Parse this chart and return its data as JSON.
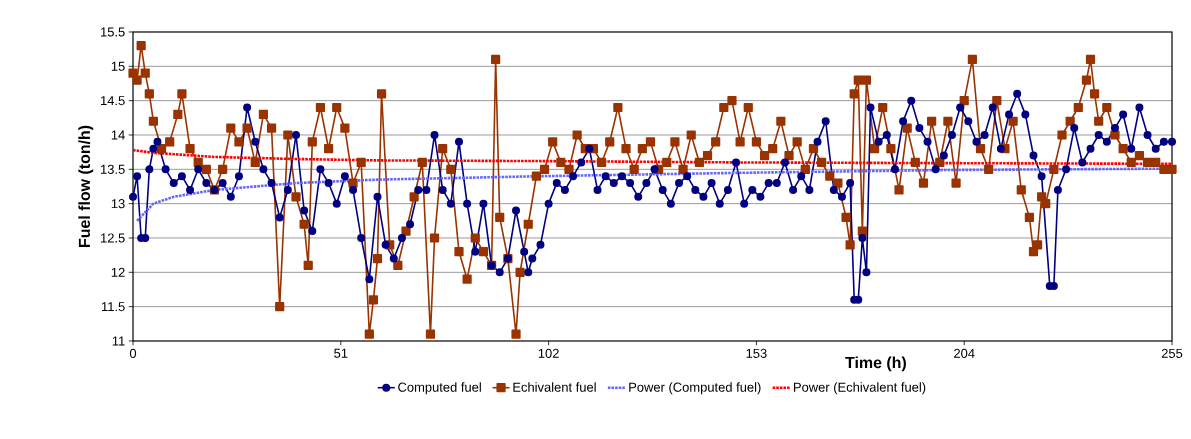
{
  "chart_data": {
    "type": "line",
    "xlabel": "Time (h)",
    "ylabel": "Fuel flow (ton/h)",
    "xlim": [
      0,
      255
    ],
    "xticks": [
      0,
      51,
      102,
      153,
      204,
      255
    ],
    "ylim": [
      11,
      15.5
    ],
    "yticks": [
      11,
      11.5,
      12,
      12.5,
      13,
      13.5,
      14,
      14.5,
      15,
      15.5
    ],
    "grid": "y",
    "legend": "bottom",
    "series": [
      {
        "name": "Computed fuel",
        "color": "#000080",
        "marker": "circle",
        "line_style": "solid",
        "x": [
          0,
          1,
          2,
          3,
          4,
          5,
          6,
          8,
          10,
          12,
          14,
          16,
          18,
          20,
          22,
          24,
          26,
          28,
          30,
          32,
          34,
          36,
          38,
          40,
          42,
          44,
          46,
          48,
          50,
          52,
          54,
          56,
          58,
          60,
          62,
          64,
          66,
          68,
          70,
          72,
          74,
          76,
          78,
          80,
          82,
          84,
          86,
          88,
          90,
          92,
          94,
          96,
          97,
          98,
          100,
          102,
          104,
          106,
          108,
          110,
          112,
          114,
          116,
          118,
          120,
          122,
          124,
          126,
          128,
          130,
          132,
          134,
          136,
          138,
          140,
          142,
          144,
          146,
          148,
          150,
          152,
          154,
          156,
          158,
          160,
          162,
          164,
          166,
          168,
          170,
          172,
          174,
          176,
          177,
          178,
          179,
          180,
          181,
          183,
          185,
          187,
          189,
          191,
          193,
          195,
          197,
          199,
          201,
          203,
          205,
          207,
          209,
          211,
          213,
          215,
          217,
          219,
          221,
          223,
          225,
          226,
          227,
          229,
          231,
          233,
          235,
          237,
          239,
          241,
          243,
          245,
          247,
          249,
          251,
          253,
          255
        ],
        "values": [
          13.1,
          13.4,
          12.5,
          12.5,
          13.5,
          13.8,
          13.9,
          13.5,
          13.3,
          13.4,
          13.2,
          13.5,
          13.3,
          13.2,
          13.3,
          13.1,
          13.4,
          14.4,
          13.9,
          13.5,
          13.3,
          12.8,
          13.2,
          14.0,
          12.9,
          12.6,
          13.5,
          13.3,
          13.0,
          13.4,
          13.2,
          12.5,
          11.9,
          13.1,
          12.4,
          12.2,
          12.5,
          12.7,
          13.2,
          13.2,
          14.0,
          13.2,
          13.0,
          13.9,
          13.0,
          12.3,
          13.0,
          12.1,
          12.0,
          12.2,
          12.9,
          12.3,
          12.0,
          12.2,
          12.4,
          13.0,
          13.3,
          13.2,
          13.4,
          13.6,
          13.8,
          13.2,
          13.4,
          13.3,
          13.4,
          13.3,
          13.1,
          13.3,
          13.5,
          13.2,
          13.0,
          13.3,
          13.4,
          13.2,
          13.1,
          13.3,
          13.0,
          13.2,
          13.6,
          13.0,
          13.2,
          13.1,
          13.3,
          13.3,
          13.6,
          13.2,
          13.4,
          13.2,
          13.9,
          14.2,
          13.2,
          13.1,
          13.3,
          11.6,
          11.6,
          12.5,
          12.0,
          14.4,
          13.9,
          14.0,
          13.5,
          14.2,
          14.5,
          14.1,
          13.9,
          13.5,
          13.7,
          14.0,
          14.4,
          14.2,
          13.9,
          14.0,
          14.4,
          13.8,
          14.3,
          14.6,
          14.3,
          13.7,
          13.4,
          11.8,
          11.8,
          13.2,
          13.5,
          14.1,
          13.6,
          13.8,
          14.0,
          13.9,
          14.1,
          14.3,
          13.8,
          14.4,
          14.0,
          13.8,
          13.9,
          13.9
        ]
      },
      {
        "name": "Echivalent fuel",
        "color": "#993300",
        "marker": "square",
        "line_style": "solid",
        "x": [
          0,
          1,
          2,
          3,
          4,
          5,
          7,
          9,
          11,
          12,
          14,
          16,
          18,
          20,
          22,
          24,
          26,
          28,
          30,
          32,
          34,
          36,
          38,
          40,
          42,
          43,
          44,
          46,
          48,
          50,
          52,
          54,
          56,
          58,
          59,
          60,
          61,
          63,
          65,
          67,
          69,
          71,
          73,
          74,
          76,
          78,
          80,
          82,
          84,
          86,
          88,
          89,
          90,
          92,
          94,
          95,
          97,
          99,
          101,
          103,
          105,
          107,
          109,
          111,
          113,
          115,
          117,
          119,
          121,
          123,
          125,
          127,
          129,
          131,
          133,
          135,
          137,
          139,
          141,
          143,
          145,
          147,
          149,
          151,
          153,
          155,
          157,
          159,
          161,
          163,
          165,
          167,
          169,
          171,
          173,
          175,
          176,
          177,
          178,
          179,
          180,
          182,
          184,
          186,
          188,
          190,
          192,
          194,
          196,
          198,
          200,
          202,
          204,
          206,
          208,
          210,
          212,
          214,
          216,
          218,
          220,
          221,
          222,
          223,
          224,
          226,
          228,
          230,
          232,
          234,
          235,
          236,
          237,
          239,
          241,
          243,
          245,
          247,
          249,
          251,
          253,
          255
        ],
        "values": [
          14.9,
          14.8,
          15.3,
          14.9,
          14.6,
          14.2,
          13.8,
          13.9,
          14.3,
          14.6,
          13.8,
          13.6,
          13.5,
          13.2,
          13.5,
          14.1,
          13.9,
          14.1,
          13.6,
          14.3,
          14.1,
          11.5,
          14.0,
          13.1,
          12.7,
          12.1,
          13.9,
          14.4,
          13.8,
          14.4,
          14.1,
          13.3,
          13.6,
          11.1,
          11.6,
          12.2,
          14.6,
          12.4,
          12.1,
          12.6,
          13.1,
          13.6,
          11.1,
          12.5,
          13.8,
          13.5,
          12.3,
          11.9,
          12.5,
          12.3,
          12.1,
          15.1,
          12.8,
          12.2,
          11.1,
          12.0,
          12.7,
          13.4,
          13.5,
          13.9,
          13.6,
          13.5,
          14.0,
          13.8,
          13.8,
          13.6,
          13.9,
          14.4,
          13.8,
          13.5,
          13.8,
          13.9,
          13.5,
          13.6,
          13.9,
          13.5,
          14.0,
          13.6,
          13.7,
          13.9,
          14.4,
          14.5,
          13.9,
          14.4,
          13.9,
          13.7,
          13.8,
          14.2,
          13.7,
          13.9,
          13.5,
          13.8,
          13.6,
          13.4,
          13.3,
          12.8,
          12.4,
          14.6,
          14.8,
          12.6,
          14.8,
          13.8,
          14.4,
          13.8,
          13.2,
          14.1,
          13.6,
          13.3,
          14.2,
          13.6,
          14.2,
          13.3,
          14.5,
          15.1,
          13.8,
          13.5,
          14.5,
          13.8,
          14.2,
          13.2,
          12.8,
          12.3,
          12.4,
          13.1,
          13.0,
          13.5,
          14.0,
          14.2,
          14.4,
          14.8,
          15.1,
          14.6,
          14.2,
          14.4,
          14.0,
          13.8,
          13.6,
          13.7,
          13.6,
          13.6,
          13.5,
          13.5
        ]
      },
      {
        "name": "Power (Computed fuel)",
        "color": "#6666ff",
        "marker": "none",
        "line_style": "dotted",
        "x": [
          1,
          5,
          10,
          20,
          40,
          60,
          100,
          150,
          200,
          255
        ],
        "values": [
          12.75,
          13.0,
          13.1,
          13.2,
          13.3,
          13.35,
          13.4,
          13.45,
          13.49,
          13.51
        ]
      },
      {
        "name": "Power (Echivalent fuel)",
        "color": "#ff0000",
        "marker": "none",
        "line_style": "dotted",
        "x": [
          0,
          5,
          10,
          20,
          40,
          60,
          100,
          150,
          200,
          255
        ],
        "values": [
          13.78,
          13.74,
          13.72,
          13.68,
          13.65,
          13.63,
          13.62,
          13.6,
          13.59,
          13.58
        ]
      }
    ]
  }
}
